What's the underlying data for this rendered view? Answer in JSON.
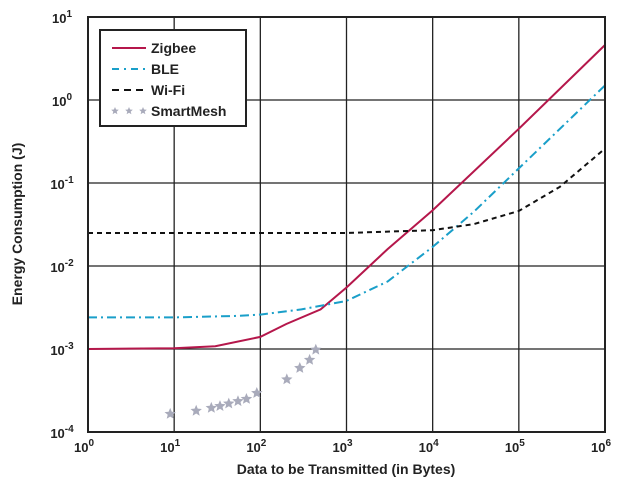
{
  "chart_data": {
    "type": "line",
    "title": "",
    "xlabel": "Data to be Transmitted (in Bytes)",
    "ylabel": "Energy Consumption (J)",
    "x_scale": "log",
    "y_scale": "log",
    "xlim": [
      1,
      1000000
    ],
    "ylim": [
      0.0001,
      10
    ],
    "x_ticks": [
      {
        "base": "10",
        "exp": "0"
      },
      {
        "base": "10",
        "exp": "1"
      },
      {
        "base": "10",
        "exp": "2"
      },
      {
        "base": "10",
        "exp": "3"
      },
      {
        "base": "10",
        "exp": "4"
      },
      {
        "base": "10",
        "exp": "5"
      },
      {
        "base": "10",
        "exp": "6"
      }
    ],
    "y_ticks": [
      {
        "base": "10",
        "exp": "-4"
      },
      {
        "base": "10",
        "exp": "-3"
      },
      {
        "base": "10",
        "exp": "-2"
      },
      {
        "base": "10",
        "exp": "-1"
      },
      {
        "base": "10",
        "exp": "0"
      },
      {
        "base": "10",
        "exp": "1"
      }
    ],
    "grid": true,
    "legend_placement": "top-left",
    "series": [
      {
        "name": "Zigbee",
        "style": "solid",
        "color": "#b5174b",
        "x": [
          1,
          10,
          30,
          100,
          200,
          500,
          1000,
          3000,
          10000,
          100000,
          1000000
        ],
        "y": [
          0.001,
          0.00102,
          0.00108,
          0.0014,
          0.002,
          0.003,
          0.0055,
          0.016,
          0.047,
          0.45,
          4.6
        ]
      },
      {
        "name": "BLE",
        "style": "dash-dot",
        "color": "#1a9fc9",
        "x": [
          1,
          10,
          50,
          100,
          300,
          1000,
          3000,
          10000,
          30000,
          100000,
          1000000
        ],
        "y": [
          0.0024,
          0.0024,
          0.0025,
          0.0026,
          0.003,
          0.0038,
          0.0065,
          0.017,
          0.045,
          0.15,
          1.5
        ]
      },
      {
        "name": "Wi-Fi",
        "style": "dashed",
        "color": "#111111",
        "x": [
          1,
          10,
          100,
          1000,
          3000,
          10000,
          30000,
          100000,
          300000,
          1000000
        ],
        "y": [
          0.025,
          0.025,
          0.025,
          0.025,
          0.026,
          0.027,
          0.032,
          0.046,
          0.09,
          0.26
        ]
      },
      {
        "name": "SmartMesh",
        "style": "stars",
        "color": "#a9abbb",
        "x": [
          9,
          18,
          27,
          34,
          43,
          55,
          69,
          91,
          203,
          287,
          373,
          440
        ],
        "y": [
          0.000165,
          0.00018,
          0.000195,
          0.000205,
          0.00022,
          0.000235,
          0.00025,
          0.000295,
          0.00043,
          0.00059,
          0.00074,
          0.00098
        ]
      }
    ]
  }
}
